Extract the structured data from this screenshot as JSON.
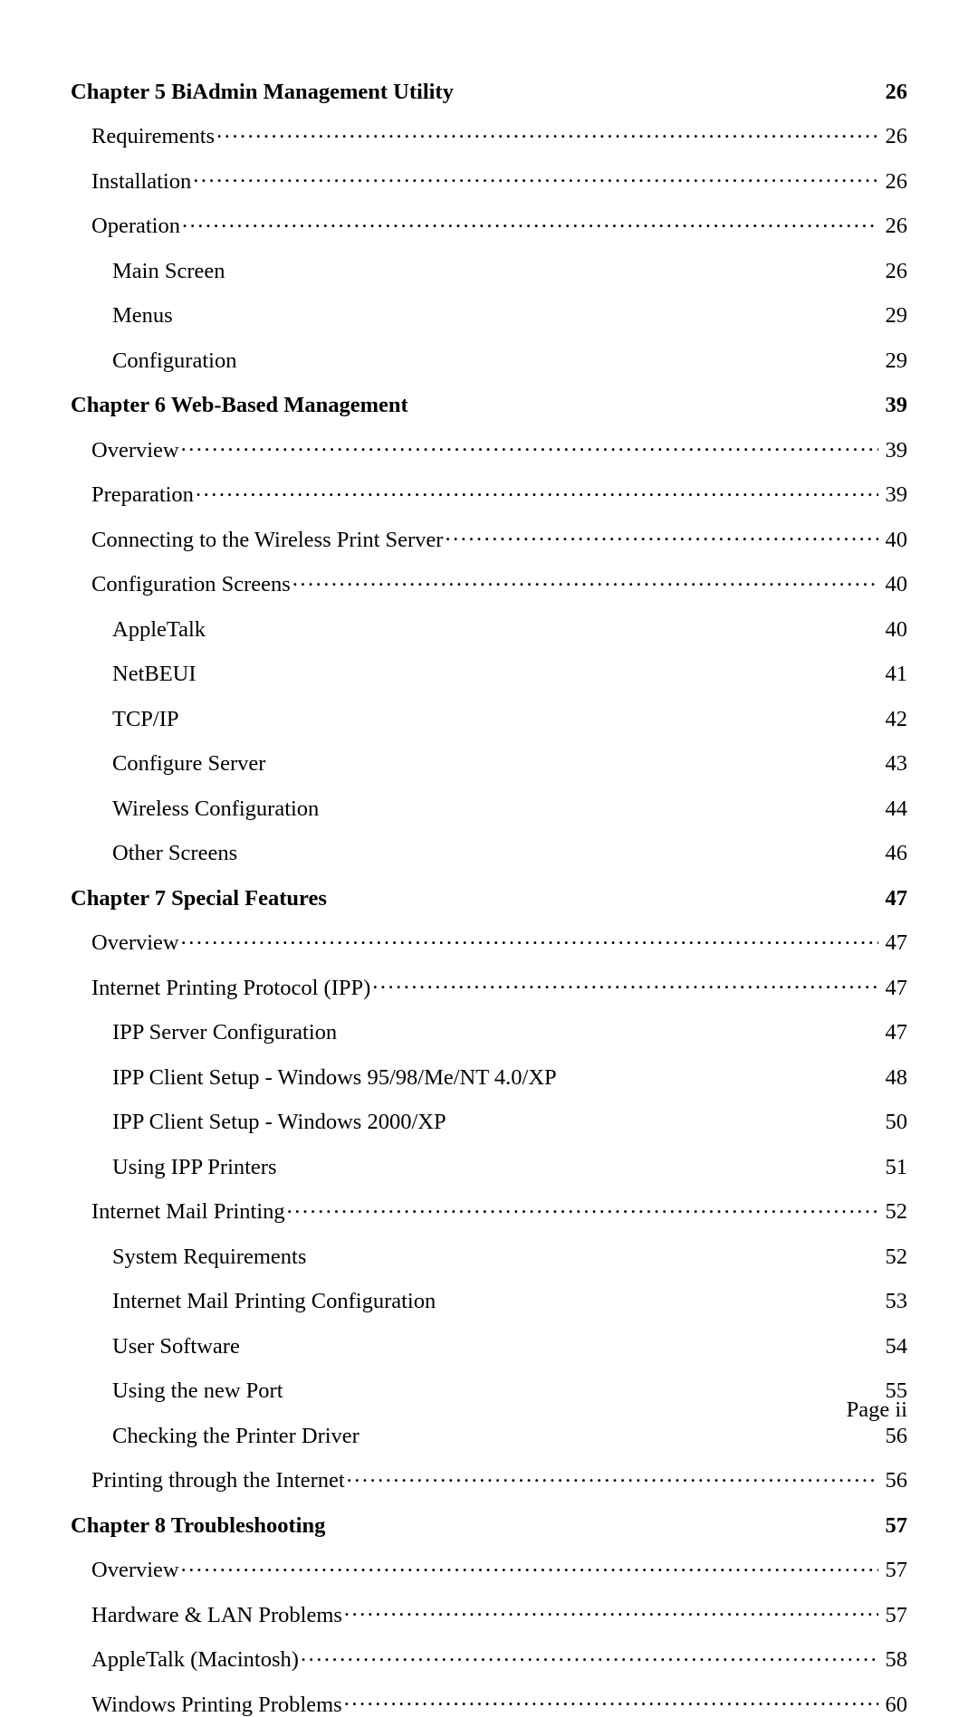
{
  "toc": [
    {
      "level": "chapter",
      "title": "Chapter 5 BiAdmin Management Utility",
      "page": "26",
      "leader": false
    },
    {
      "level": "section",
      "title": "Requirements",
      "page": "26",
      "leader": true
    },
    {
      "level": "section",
      "title": "Installation",
      "page": "26",
      "leader": true
    },
    {
      "level": "section",
      "title": "Operation",
      "page": "26",
      "leader": true
    },
    {
      "level": "subsection",
      "title": "Main Screen",
      "page": "26",
      "leader": false
    },
    {
      "level": "subsection",
      "title": "Menus",
      "page": "29",
      "leader": false
    },
    {
      "level": "subsection",
      "title": "Configuration",
      "page": "29",
      "leader": false
    },
    {
      "level": "chapter",
      "title": "Chapter 6 Web-Based Management",
      "page": "39",
      "leader": false
    },
    {
      "level": "section",
      "title": "Overview",
      "page": "39",
      "leader": true
    },
    {
      "level": "section",
      "title": "Preparation",
      "page": "39",
      "leader": true
    },
    {
      "level": "section",
      "title": "Connecting to the Wireless Print Server",
      "page": "40",
      "leader": true
    },
    {
      "level": "section",
      "title": "Configuration Screens",
      "page": "40",
      "leader": true
    },
    {
      "level": "subsection",
      "title": "AppleTalk",
      "page": "40",
      "leader": false
    },
    {
      "level": "subsection",
      "title": "NetBEUI",
      "page": "41",
      "leader": false
    },
    {
      "level": "subsection",
      "title": "TCP/IP",
      "page": "42",
      "leader": false
    },
    {
      "level": "subsection",
      "title": "Configure Server",
      "page": "43",
      "leader": false
    },
    {
      "level": "subsection",
      "title": "Wireless Configuration",
      "page": "44",
      "leader": false
    },
    {
      "level": "subsection",
      "title": "Other Screens",
      "page": "46",
      "leader": false
    },
    {
      "level": "chapter",
      "title": "Chapter 7 Special Features",
      "page": "47",
      "leader": false
    },
    {
      "level": "section",
      "title": "Overview",
      "page": "47",
      "leader": true
    },
    {
      "level": "section",
      "title": "Internet Printing Protocol (IPP)",
      "page": "47",
      "leader": true
    },
    {
      "level": "subsection",
      "title": "IPP Server Configuration",
      "page": "47",
      "leader": false
    },
    {
      "level": "subsection",
      "title": "IPP Client Setup - Windows 95/98/Me/NT 4.0/XP",
      "page": "48",
      "leader": false
    },
    {
      "level": "subsection",
      "title": "IPP Client Setup - Windows 2000/XP",
      "page": "50",
      "leader": false
    },
    {
      "level": "subsection",
      "title": "Using IPP Printers",
      "page": "51",
      "leader": false
    },
    {
      "level": "section",
      "title": "Internet Mail Printing",
      "page": "52",
      "leader": true
    },
    {
      "level": "subsection",
      "title": "System Requirements",
      "page": "52",
      "leader": false
    },
    {
      "level": "subsection",
      "title": "Internet Mail Printing Configuration",
      "page": "53",
      "leader": false
    },
    {
      "level": "subsection",
      "title": "User Software",
      "page": "54",
      "leader": false
    },
    {
      "level": "subsection",
      "title": "Using the new Port",
      "page": "55",
      "leader": false
    },
    {
      "level": "subsection",
      "title": "Checking the Printer Driver",
      "page": "56",
      "leader": false
    },
    {
      "level": "section",
      "title": "Printing through the Internet",
      "page": "56",
      "leader": true
    },
    {
      "level": "chapter",
      "title": "Chapter 8 Troubleshooting",
      "page": "57",
      "leader": false
    },
    {
      "level": "section",
      "title": "Overview",
      "page": "57",
      "leader": true
    },
    {
      "level": "section",
      "title": "Hardware & LAN Problems",
      "page": "57",
      "leader": true
    },
    {
      "level": "section",
      "title": "AppleTalk (Macintosh)",
      "page": "58",
      "leader": true
    },
    {
      "level": "section",
      "title": "Windows Printing Problems",
      "page": "60",
      "leader": true
    }
  ],
  "footer": {
    "page_label": "Page ii"
  }
}
